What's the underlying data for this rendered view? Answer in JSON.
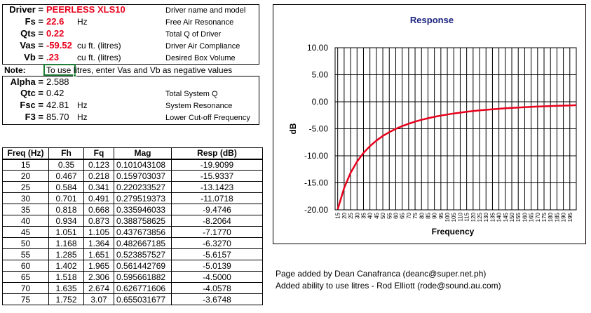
{
  "params": {
    "driver": {
      "label": "Driver =",
      "value": "PEERLESS XLS10",
      "desc": "Driver name and model"
    },
    "fs": {
      "label": "Fs =",
      "value": "22.6",
      "unit": "Hz",
      "desc": "Free Air Resonance"
    },
    "qts": {
      "label": "Qts =",
      "value": "0.22",
      "desc": "Total Q of Driver"
    },
    "vas": {
      "label": "Vas =",
      "value": "-59.52",
      "unit": "cu ft. (litres)",
      "desc": "Driver Air Compliance"
    },
    "vb": {
      "label": "Vb =",
      "value": ".23",
      "unit": "cu ft. (litres)",
      "desc": "Desired Box Volume"
    }
  },
  "note": {
    "label": "Note:",
    "text": "To use litres, enter Vas and Vb as negative values"
  },
  "results": {
    "alpha": {
      "label": "Alpha =",
      "value": "2.588"
    },
    "qtc": {
      "label": "Qtc =",
      "value": "0.42",
      "desc": "Total System Q"
    },
    "fsc": {
      "label": "Fsc =",
      "value": "42.81",
      "unit": "Hz",
      "desc": "System Resonance"
    },
    "f3": {
      "label": "F3 =",
      "value": "85.70",
      "unit": "Hz",
      "desc": "Lower Cut-off Frequency"
    }
  },
  "table": {
    "headers": [
      "Freq (Hz)",
      "Fh",
      "Fq",
      "Mag",
      "Resp (dB)"
    ],
    "rows": [
      [
        "15",
        "0.35",
        "0.123",
        "0.101043108",
        "-19.9099"
      ],
      [
        "20",
        "0.467",
        "0.218",
        "0.159703037",
        "-15.9337"
      ],
      [
        "25",
        "0.584",
        "0.341",
        "0.220233527",
        "-13.1423"
      ],
      [
        "30",
        "0.701",
        "0.491",
        "0.279519373",
        "-11.0718"
      ],
      [
        "35",
        "0.818",
        "0.668",
        "0.335946033",
        "-9.4746"
      ],
      [
        "40",
        "0.934",
        "0.873",
        "0.388758625",
        "-8.2064"
      ],
      [
        "45",
        "1.051",
        "1.105",
        "0.437673856",
        "-7.1770"
      ],
      [
        "50",
        "1.168",
        "1.364",
        "0.482667185",
        "-6.3270"
      ],
      [
        "55",
        "1.285",
        "1.651",
        "0.523857527",
        "-5.6157"
      ],
      [
        "60",
        "1.402",
        "1.965",
        "0.561442769",
        "-5.0139"
      ],
      [
        "65",
        "1.518",
        "2.306",
        "0.595661882",
        "-4.5000"
      ],
      [
        "70",
        "1.635",
        "2.674",
        "0.626771606",
        "-4.0578"
      ],
      [
        "75",
        "1.752",
        "3.07",
        "0.655031677",
        "-3.6748"
      ]
    ]
  },
  "footer": {
    "line1": "Page added by Dean Canafranca (deanc@super.net.ph)",
    "line2": "Added ability to use litres - Rod Elliott (rode@sound.au.com)"
  },
  "colors": {
    "title": "#1a237e",
    "curve": "#e8001c",
    "redtext": "#e8001c"
  },
  "chart_data": {
    "type": "line",
    "title": "Response",
    "xlabel": "Frequency",
    "ylabel": "dB",
    "ylim": [
      -20,
      10
    ],
    "yticks": [
      "10.00",
      "5.00",
      "0.00",
      "-5.00",
      "-10.00",
      "-15.00",
      "-20.00"
    ],
    "xticks": [
      "15",
      "20",
      "25",
      "30",
      "35",
      "40",
      "45",
      "50",
      "55",
      "60",
      "65",
      "70",
      "75",
      "80",
      "85",
      "90",
      "95",
      "100",
      "105",
      "110",
      "115",
      "120",
      "125",
      "130",
      "135",
      "140",
      "145",
      "150",
      "155",
      "160",
      "165",
      "170",
      "175",
      "180",
      "185",
      "190",
      "195"
    ],
    "series": [
      {
        "x": [
          15,
          20,
          25,
          30,
          35,
          40,
          45,
          50,
          55,
          60,
          65,
          70,
          75,
          80,
          85,
          90,
          95,
          100,
          105,
          110,
          115,
          120,
          125,
          130,
          135,
          140,
          145,
          150,
          155,
          160,
          165,
          170,
          175,
          180,
          185,
          190,
          195,
          200
        ],
        "y": [
          -19.91,
          -15.93,
          -13.14,
          -11.07,
          -9.47,
          -8.21,
          -7.18,
          -6.33,
          -5.62,
          -5.01,
          -4.5,
          -4.06,
          -3.67,
          -3.34,
          -3.05,
          -2.79,
          -2.56,
          -2.36,
          -2.17,
          -2.01,
          -1.86,
          -1.72,
          -1.6,
          -1.49,
          -1.39,
          -1.3,
          -1.21,
          -1.14,
          -1.07,
          -1.0,
          -0.94,
          -0.89,
          -0.84,
          -0.79,
          -0.75,
          -0.71,
          -0.67,
          -0.64
        ]
      }
    ],
    "grid": true,
    "legend": "none"
  }
}
